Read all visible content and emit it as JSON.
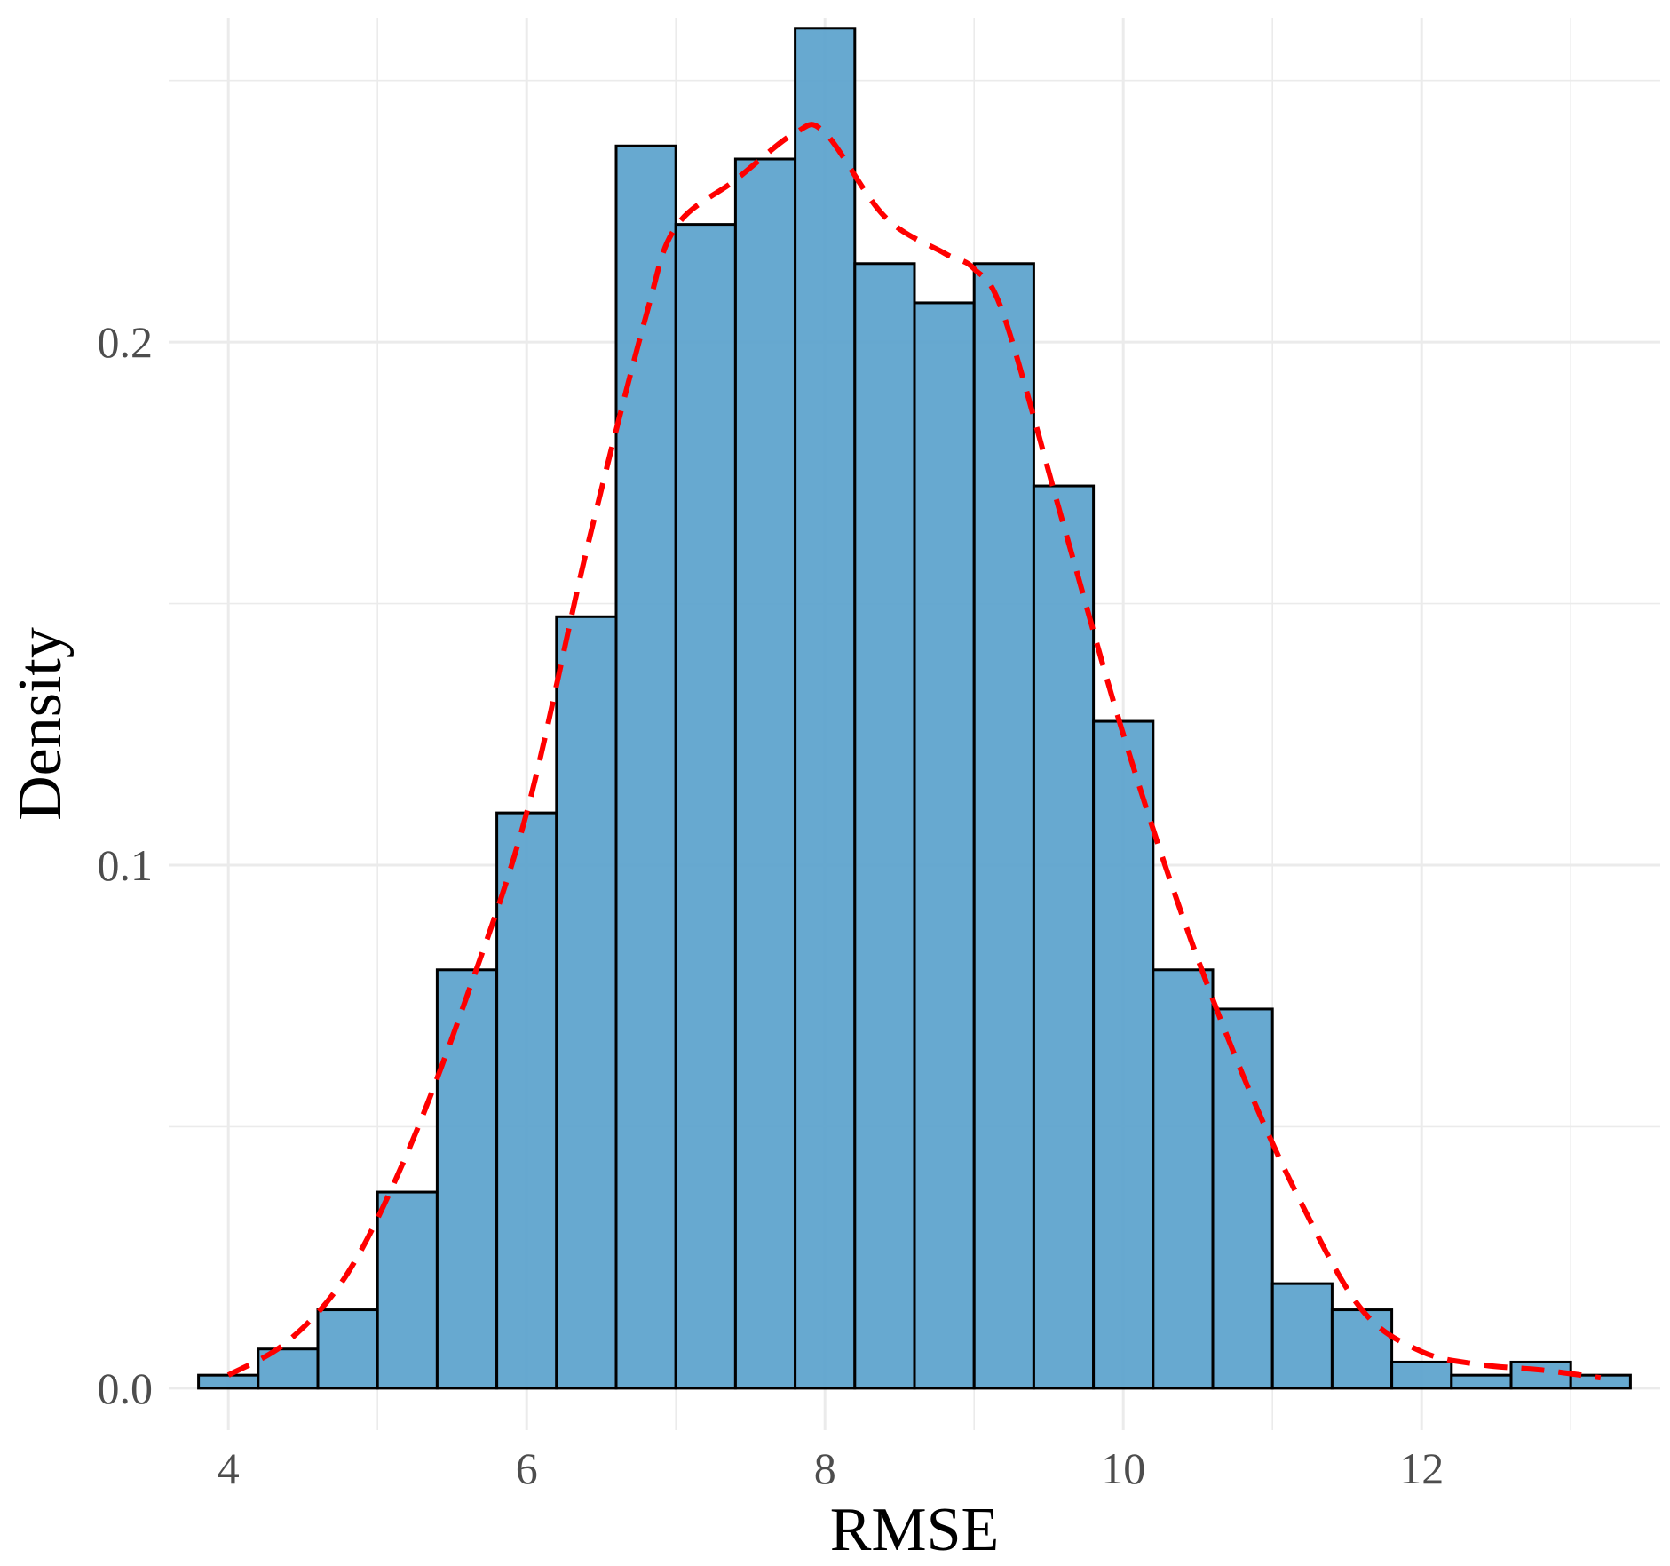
{
  "chart_data": {
    "type": "bar",
    "subtype": "histogram-with-density",
    "title": "",
    "xlabel": "RMSE",
    "ylabel": "Density",
    "xlim": [
      3.6,
      13.6
    ],
    "ylim": [
      -0.008,
      0.262
    ],
    "x_ticks": [
      4,
      6,
      8,
      10,
      12
    ],
    "x_tick_labels": [
      "4",
      "6",
      "8",
      "10",
      "12"
    ],
    "y_ticks": [
      0.0,
      0.1,
      0.2
    ],
    "y_tick_labels": [
      "0.0",
      "0.1",
      "0.2"
    ],
    "grid": true,
    "bin_width": 0.4,
    "bin_starts": [
      3.8,
      4.2,
      4.6,
      5.0,
      5.4,
      5.8,
      6.2,
      6.6,
      7.0,
      7.4,
      7.8,
      8.2,
      8.6,
      9.0,
      9.4,
      9.8,
      10.2,
      10.6,
      11.0,
      11.4,
      11.8,
      12.2,
      12.6,
      13.0
    ],
    "series": [
      {
        "name": "histogram",
        "values": [
          0.0025,
          0.0075,
          0.015,
          0.0375,
          0.08,
          0.11,
          0.1475,
          0.2375,
          0.2225,
          0.235,
          0.26,
          0.215,
          0.2075,
          0.215,
          0.1725,
          0.1275,
          0.08,
          0.0725,
          0.02,
          0.015,
          0.005,
          0.0025,
          0.005,
          0.0025
        ],
        "color": "#5AA2CC",
        "edge_color": "#000000"
      },
      {
        "name": "density",
        "style": "dashed",
        "color": "#FF0000",
        "x": [
          4.0,
          4.4,
          4.8,
          5.2,
          5.6,
          6.0,
          6.4,
          6.8,
          7.0,
          7.4,
          7.8,
          8.0,
          8.4,
          8.8,
          9.0,
          9.2,
          9.6,
          10.0,
          10.4,
          10.8,
          11.2,
          11.6,
          12.0,
          12.4,
          12.8,
          13.2
        ],
        "y": [
          0.0025,
          0.009,
          0.022,
          0.045,
          0.075,
          0.11,
          0.16,
          0.205,
          0.222,
          0.231,
          0.24,
          0.24,
          0.224,
          0.217,
          0.214,
          0.205,
          0.165,
          0.125,
          0.09,
          0.06,
          0.035,
          0.015,
          0.007,
          0.0045,
          0.0035,
          0.002
        ]
      }
    ]
  }
}
